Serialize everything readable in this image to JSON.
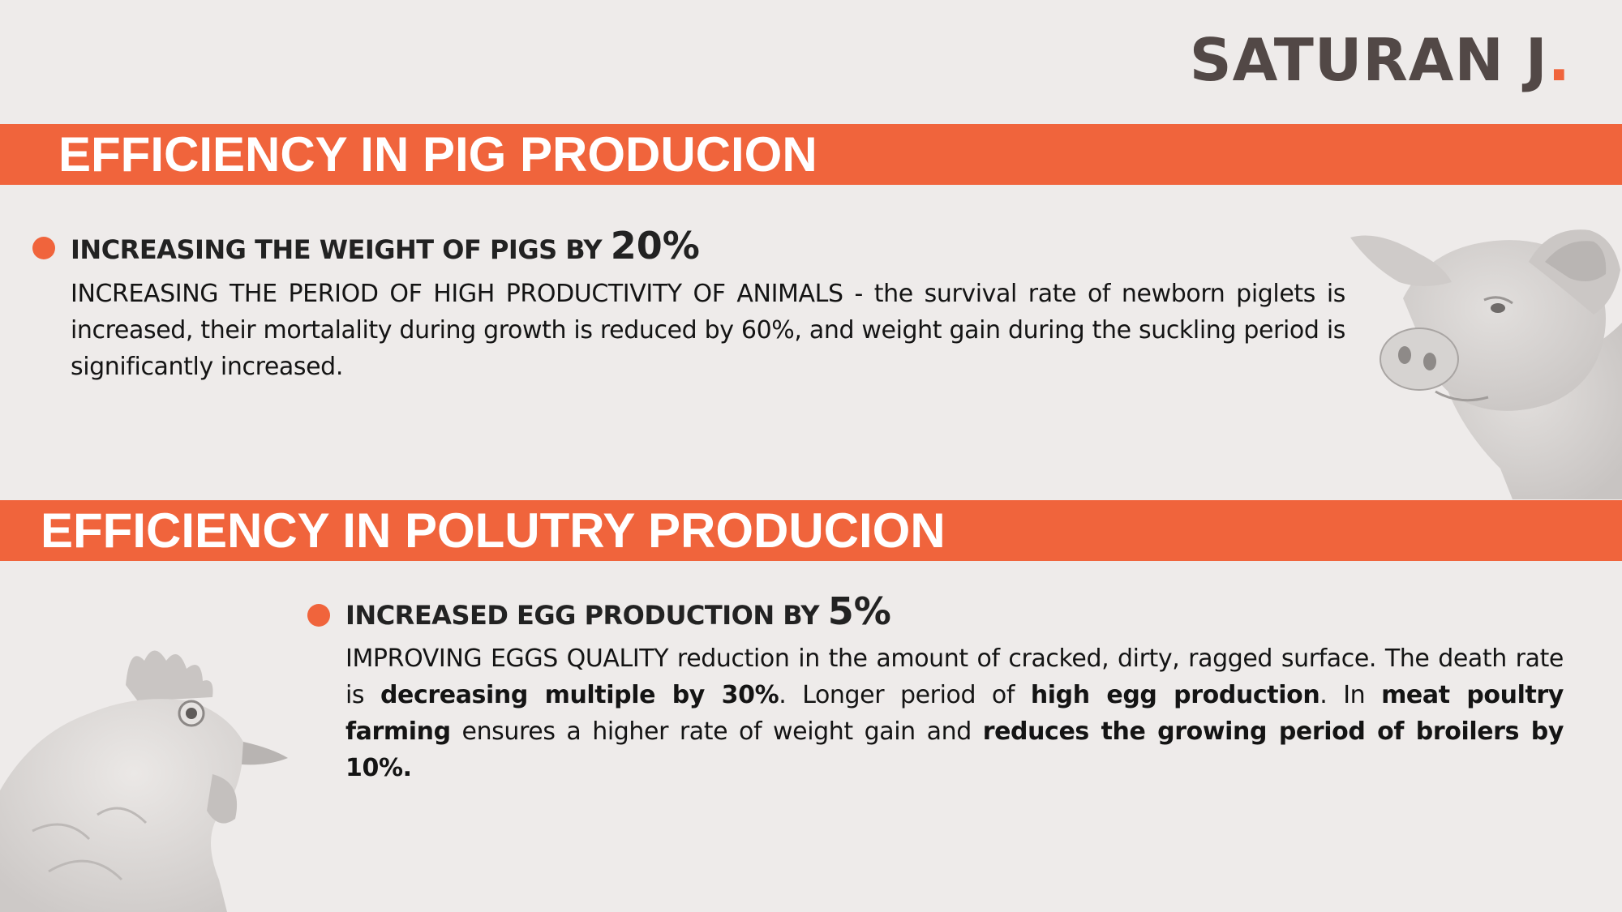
{
  "brand": {
    "name": "SATURAN J",
    "dot": "."
  },
  "pig": {
    "title": "EFFICIENCY IN PIG PRODUCION",
    "heading": "INCREASING THE WEIGHT OF PIGS BY ",
    "heading_value": "20%",
    "body": "INCREASING THE PERIOD OF HIGH PRODUCTIVITY OF ANIMALS - the survival rate of newborn piglets is increased, their mortalality during growth is reduced by 60%, and weight gain during the suckling period is significantly increased."
  },
  "poultry": {
    "title": "EFFICIENCY IN POLUTRY PRODUCION",
    "heading": "INCREASED EGG PRODUCTION BY ",
    "heading_value": "5%",
    "body": {
      "p1": "IMPROVING EGGS QUALITY reduction in the amount of cracked, dirty, ragged surface. The death rate is ",
      "b1": "decreasing multiple by 30%",
      "p2": ". Longer period of ",
      "b2": "high egg production",
      "p3": ". In ",
      "b3": "meat poultry farming",
      "p4": " ensures a higher rate of weight gain and ",
      "b4": "reduces the growing period of broilers by 10%."
    }
  },
  "colors": {
    "accent": "#f0643c",
    "background": "#eeebea",
    "brand_text": "#524846"
  },
  "icons": {
    "pig": "pig-illustration",
    "hen": "hen-illustration",
    "bullet": "bullet-dot"
  }
}
